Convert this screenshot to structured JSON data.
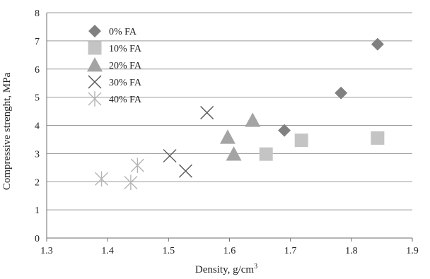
{
  "chart_data": {
    "type": "scatter",
    "title": "",
    "xlabel": "Density, g/cm",
    "xlabel_sup": "3",
    "ylabel": "Compressive strenght, MPa",
    "xlim": [
      1.3,
      1.9
    ],
    "ylim": [
      0,
      8
    ],
    "x_ticks": [
      "1.3",
      "1.4",
      "1.5",
      "1.6",
      "1.7",
      "1.8",
      "1.9"
    ],
    "y_ticks": [
      "0",
      "1",
      "2",
      "3",
      "4",
      "5",
      "6",
      "7",
      "8"
    ],
    "grid": "horizontal",
    "legend_position": "top-left",
    "series": [
      {
        "name": "0% FA",
        "marker": "diamond",
        "color": "#808080",
        "points": [
          [
            1.69,
            3.82
          ],
          [
            1.783,
            5.15
          ],
          [
            1.843,
            6.88
          ]
        ]
      },
      {
        "name": "10% FA",
        "marker": "square",
        "color": "#c4c4c4",
        "points": [
          [
            1.66,
            2.98
          ],
          [
            1.718,
            3.47
          ],
          [
            1.843,
            3.55
          ]
        ]
      },
      {
        "name": "20% FA",
        "marker": "triangle",
        "color": "#a4a4a4",
        "points": [
          [
            1.597,
            3.58
          ],
          [
            1.607,
            2.98
          ],
          [
            1.638,
            4.18
          ]
        ]
      },
      {
        "name": "30% FA",
        "marker": "x",
        "color": "#555555",
        "points": [
          [
            1.502,
            2.92
          ],
          [
            1.528,
            2.38
          ],
          [
            1.563,
            4.45
          ]
        ]
      },
      {
        "name": "40% FA",
        "marker": "star",
        "color": "#b4b4b4",
        "points": [
          [
            1.39,
            2.1
          ],
          [
            1.438,
            1.97
          ],
          [
            1.449,
            2.58
          ]
        ]
      }
    ]
  }
}
